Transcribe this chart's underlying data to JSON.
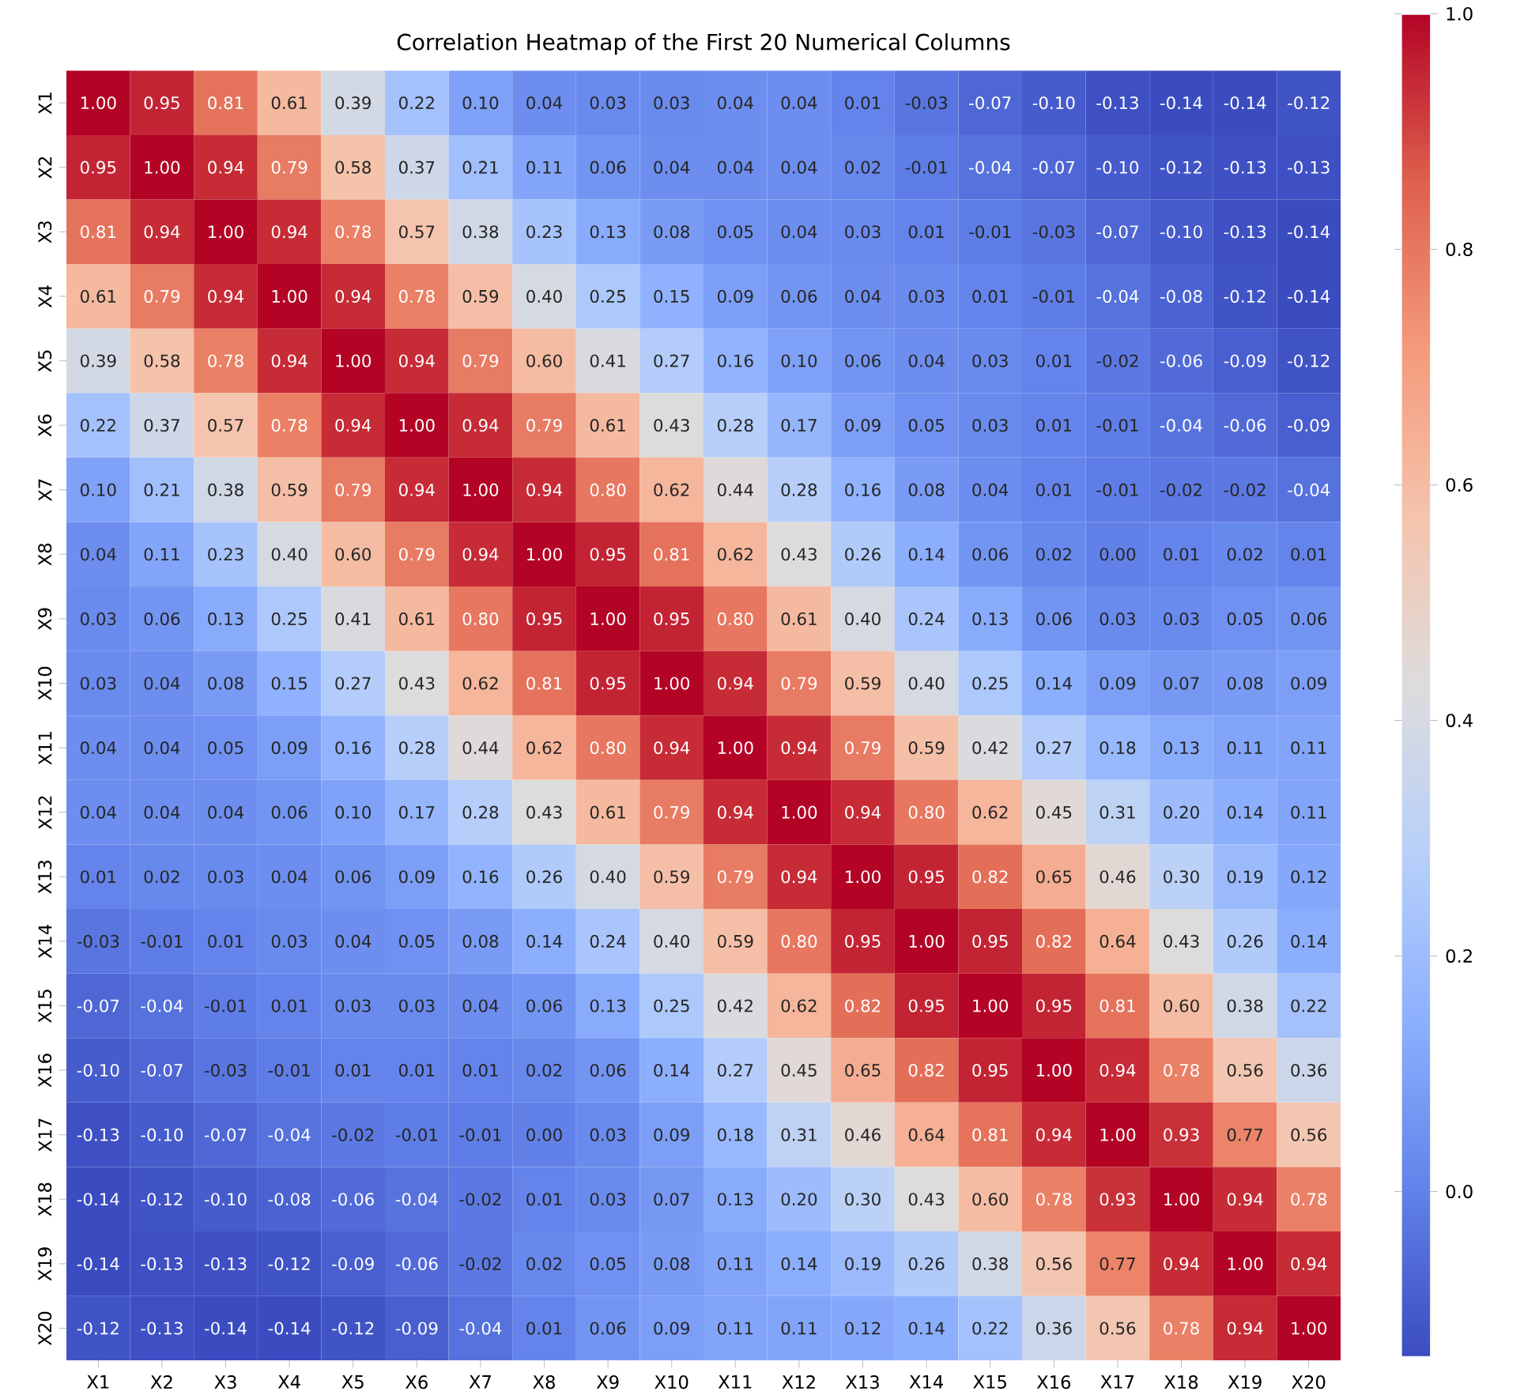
{
  "chart_data": {
    "type": "heatmap",
    "title": "Correlation Heatmap of the First 20 Numerical Columns",
    "categories": [
      "X1",
      "X2",
      "X3",
      "X4",
      "X5",
      "X6",
      "X7",
      "X8",
      "X9",
      "X10",
      "X11",
      "X12",
      "X13",
      "X14",
      "X15",
      "X16",
      "X17",
      "X18",
      "X19",
      "X20"
    ],
    "y_categories": [
      "X1",
      "X2",
      "X3",
      "X4",
      "X5",
      "X6",
      "X7",
      "X8",
      "X9",
      "X10",
      "X11",
      "X12",
      "X13",
      "X14",
      "X15",
      "X16",
      "X17",
      "X18",
      "X19",
      "X20"
    ],
    "cells": [
      [
        1.0,
        0.95,
        0.81,
        0.61,
        0.39,
        0.22,
        0.1,
        0.04,
        0.03,
        0.03,
        0.04,
        0.04,
        0.01,
        -0.03,
        -0.07,
        -0.1,
        -0.13,
        -0.14,
        -0.14,
        -0.12
      ],
      [
        0.95,
        1.0,
        0.94,
        0.79,
        0.58,
        0.37,
        0.21,
        0.11,
        0.06,
        0.04,
        0.04,
        0.04,
        0.02,
        -0.01,
        -0.04,
        -0.07,
        -0.1,
        -0.12,
        -0.13,
        -0.13
      ],
      [
        0.81,
        0.94,
        1.0,
        0.94,
        0.78,
        0.57,
        0.38,
        0.23,
        0.13,
        0.08,
        0.05,
        0.04,
        0.03,
        0.01,
        -0.01,
        -0.03,
        -0.07,
        -0.1,
        -0.13,
        -0.14
      ],
      [
        0.61,
        0.79,
        0.94,
        1.0,
        0.94,
        0.78,
        0.59,
        0.4,
        0.25,
        0.15,
        0.09,
        0.06,
        0.04,
        0.03,
        0.01,
        -0.01,
        -0.04,
        -0.08,
        -0.12,
        -0.14
      ],
      [
        0.39,
        0.58,
        0.78,
        0.94,
        1.0,
        0.94,
        0.79,
        0.6,
        0.41,
        0.27,
        0.16,
        0.1,
        0.06,
        0.04,
        0.03,
        0.01,
        -0.02,
        -0.06,
        -0.09,
        -0.12
      ],
      [
        0.22,
        0.37,
        0.57,
        0.78,
        0.94,
        1.0,
        0.94,
        0.79,
        0.61,
        0.43,
        0.28,
        0.17,
        0.09,
        0.05,
        0.03,
        0.01,
        -0.01,
        -0.04,
        -0.06,
        -0.09
      ],
      [
        0.1,
        0.21,
        0.38,
        0.59,
        0.79,
        0.94,
        1.0,
        0.94,
        0.8,
        0.62,
        0.44,
        0.28,
        0.16,
        0.08,
        0.04,
        0.01,
        -0.01,
        -0.02,
        -0.02,
        -0.04
      ],
      [
        0.04,
        0.11,
        0.23,
        0.4,
        0.6,
        0.79,
        0.94,
        1.0,
        0.95,
        0.81,
        0.62,
        0.43,
        0.26,
        0.14,
        0.06,
        0.02,
        0.0,
        0.01,
        0.02,
        0.01
      ],
      [
        0.03,
        0.06,
        0.13,
        0.25,
        0.41,
        0.61,
        0.8,
        0.95,
        1.0,
        0.95,
        0.8,
        0.61,
        0.4,
        0.24,
        0.13,
        0.06,
        0.03,
        0.03,
        0.05,
        0.06
      ],
      [
        0.03,
        0.04,
        0.08,
        0.15,
        0.27,
        0.43,
        0.62,
        0.81,
        0.95,
        1.0,
        0.94,
        0.79,
        0.59,
        0.4,
        0.25,
        0.14,
        0.09,
        0.07,
        0.08,
        0.09
      ],
      [
        0.04,
        0.04,
        0.05,
        0.09,
        0.16,
        0.28,
        0.44,
        0.62,
        0.8,
        0.94,
        1.0,
        0.94,
        0.79,
        0.59,
        0.42,
        0.27,
        0.18,
        0.13,
        0.11,
        0.11
      ],
      [
        0.04,
        0.04,
        0.04,
        0.06,
        0.1,
        0.17,
        0.28,
        0.43,
        0.61,
        0.79,
        0.94,
        1.0,
        0.94,
        0.8,
        0.62,
        0.45,
        0.31,
        0.2,
        0.14,
        0.11
      ],
      [
        0.01,
        0.02,
        0.03,
        0.04,
        0.06,
        0.09,
        0.16,
        0.26,
        0.4,
        0.59,
        0.79,
        0.94,
        1.0,
        0.95,
        0.82,
        0.65,
        0.46,
        0.3,
        0.19,
        0.12
      ],
      [
        -0.03,
        -0.01,
        0.01,
        0.03,
        0.04,
        0.05,
        0.08,
        0.14,
        0.24,
        0.4,
        0.59,
        0.8,
        0.95,
        1.0,
        0.95,
        0.82,
        0.64,
        0.43,
        0.26,
        0.14
      ],
      [
        -0.07,
        -0.04,
        -0.01,
        0.01,
        0.03,
        0.03,
        0.04,
        0.06,
        0.13,
        0.25,
        0.42,
        0.62,
        0.82,
        0.95,
        1.0,
        0.95,
        0.81,
        0.6,
        0.38,
        0.22
      ],
      [
        -0.1,
        -0.07,
        -0.03,
        -0.01,
        0.01,
        0.01,
        0.01,
        0.02,
        0.06,
        0.14,
        0.27,
        0.45,
        0.65,
        0.82,
        0.95,
        1.0,
        0.94,
        0.78,
        0.56,
        0.36
      ],
      [
        -0.13,
        -0.1,
        -0.07,
        -0.04,
        -0.02,
        -0.01,
        -0.01,
        0.0,
        0.03,
        0.09,
        0.18,
        0.31,
        0.46,
        0.64,
        0.81,
        0.94,
        1.0,
        0.93,
        0.77,
        0.56
      ],
      [
        -0.14,
        -0.12,
        -0.1,
        -0.08,
        -0.06,
        -0.04,
        -0.02,
        0.01,
        0.03,
        0.07,
        0.13,
        0.2,
        0.3,
        0.43,
        0.6,
        0.78,
        0.93,
        1.0,
        0.94,
        0.78
      ],
      [
        -0.14,
        -0.13,
        -0.13,
        -0.12,
        -0.09,
        -0.06,
        -0.02,
        0.02,
        0.05,
        0.08,
        0.11,
        0.14,
        0.19,
        0.26,
        0.38,
        0.56,
        0.77,
        0.94,
        1.0,
        0.94
      ],
      [
        -0.12,
        -0.13,
        -0.14,
        -0.14,
        -0.12,
        -0.09,
        -0.04,
        0.01,
        0.06,
        0.09,
        0.11,
        0.11,
        0.12,
        0.14,
        0.22,
        0.36,
        0.56,
        0.78,
        0.94,
        1.0
      ]
    ],
    "cell_labels": [
      [
        "1.00",
        "0.95",
        "0.81",
        "0.61",
        "0.39",
        "0.22",
        "0.10",
        "0.04",
        "0.03",
        "0.03",
        "0.04",
        "0.04",
        "0.01",
        "-0.03",
        "-0.07",
        "-0.10",
        "-0.13",
        "-0.14",
        "-0.14",
        "-0.12"
      ],
      [
        "0.95",
        "1.00",
        "0.94",
        "0.79",
        "0.58",
        "0.37",
        "0.21",
        "0.11",
        "0.06",
        "0.04",
        "0.04",
        "0.04",
        "0.02",
        "-0.01",
        "-0.04",
        "-0.07",
        "-0.10",
        "-0.12",
        "-0.13",
        "-0.13"
      ],
      [
        "0.81",
        "0.94",
        "1.00",
        "0.94",
        "0.78",
        "0.57",
        "0.38",
        "0.23",
        "0.13",
        "0.08",
        "0.05",
        "0.04",
        "0.03",
        "0.01",
        "-0.01",
        "-0.03",
        "-0.07",
        "-0.10",
        "-0.13",
        "-0.14"
      ],
      [
        "0.61",
        "0.79",
        "0.94",
        "1.00",
        "0.94",
        "0.78",
        "0.59",
        "0.40",
        "0.25",
        "0.15",
        "0.09",
        "0.06",
        "0.04",
        "0.03",
        "0.01",
        "-0.01",
        "-0.04",
        "-0.08",
        "-0.12",
        "-0.14"
      ],
      [
        "0.39",
        "0.58",
        "0.78",
        "0.94",
        "1.00",
        "0.94",
        "0.79",
        "0.60",
        "0.41",
        "0.27",
        "0.16",
        "0.10",
        "0.06",
        "0.04",
        "0.03",
        "0.01",
        "-0.02",
        "-0.06",
        "-0.09",
        "-0.12"
      ],
      [
        "0.22",
        "0.37",
        "0.57",
        "0.78",
        "0.94",
        "1.00",
        "0.94",
        "0.79",
        "0.61",
        "0.43",
        "0.28",
        "0.17",
        "0.09",
        "0.05",
        "0.03",
        "0.01",
        "-0.01",
        "-0.04",
        "-0.06",
        "-0.09"
      ],
      [
        "0.10",
        "0.21",
        "0.38",
        "0.59",
        "0.79",
        "0.94",
        "1.00",
        "0.94",
        "0.80",
        "0.62",
        "0.44",
        "0.28",
        "0.16",
        "0.08",
        "0.04",
        "0.01",
        "-0.01",
        "-0.02",
        "-0.02",
        "-0.04"
      ],
      [
        "0.04",
        "0.11",
        "0.23",
        "0.40",
        "0.60",
        "0.79",
        "0.94",
        "1.00",
        "0.95",
        "0.81",
        "0.62",
        "0.43",
        "0.26",
        "0.14",
        "0.06",
        "0.02",
        "0.00",
        "0.01",
        "0.02",
        "0.01"
      ],
      [
        "0.03",
        "0.06",
        "0.13",
        "0.25",
        "0.41",
        "0.61",
        "0.80",
        "0.95",
        "1.00",
        "0.95",
        "0.80",
        "0.61",
        "0.40",
        "0.24",
        "0.13",
        "0.06",
        "0.03",
        "0.03",
        "0.05",
        "0.06"
      ],
      [
        "0.03",
        "0.04",
        "0.08",
        "0.15",
        "0.27",
        "0.43",
        "0.62",
        "0.81",
        "0.95",
        "1.00",
        "0.94",
        "0.79",
        "0.59",
        "0.40",
        "0.25",
        "0.14",
        "0.09",
        "0.07",
        "0.08",
        "0.09"
      ],
      [
        "0.04",
        "0.04",
        "0.05",
        "0.09",
        "0.16",
        "0.28",
        "0.44",
        "0.62",
        "0.80",
        "0.94",
        "1.00",
        "0.94",
        "0.79",
        "0.59",
        "0.42",
        "0.27",
        "0.18",
        "0.13",
        "0.11",
        "0.11"
      ],
      [
        "0.04",
        "0.04",
        "0.04",
        "0.06",
        "0.10",
        "0.17",
        "0.28",
        "0.43",
        "0.61",
        "0.79",
        "0.94",
        "1.00",
        "0.94",
        "0.80",
        "0.62",
        "0.45",
        "0.31",
        "0.20",
        "0.14",
        "0.11"
      ],
      [
        "0.01",
        "0.02",
        "0.03",
        "0.04",
        "0.06",
        "0.09",
        "0.16",
        "0.26",
        "0.40",
        "0.59",
        "0.79",
        "0.94",
        "1.00",
        "0.95",
        "0.82",
        "0.65",
        "0.46",
        "0.30",
        "0.19",
        "0.12"
      ],
      [
        "-0.03",
        "-0.01",
        "0.01",
        "0.03",
        "0.04",
        "0.05",
        "0.08",
        "0.14",
        "0.24",
        "0.40",
        "0.59",
        "0.80",
        "0.95",
        "1.00",
        "0.95",
        "0.82",
        "0.64",
        "0.43",
        "0.26",
        "0.14"
      ],
      [
        "-0.07",
        "-0.04",
        "-0.01",
        "0.01",
        "0.03",
        "0.03",
        "0.04",
        "0.06",
        "0.13",
        "0.25",
        "0.42",
        "0.62",
        "0.82",
        "0.95",
        "1.00",
        "0.95",
        "0.81",
        "0.60",
        "0.38",
        "0.22"
      ],
      [
        "-0.10",
        "-0.07",
        "-0.03",
        "-0.01",
        "0.01",
        "0.01",
        "0.01",
        "0.02",
        "0.06",
        "0.14",
        "0.27",
        "0.45",
        "0.65",
        "0.82",
        "0.95",
        "1.00",
        "0.94",
        "0.78",
        "0.56",
        "0.36"
      ],
      [
        "-0.13",
        "-0.10",
        "-0.07",
        "-0.04",
        "-0.02",
        "-0.01",
        "-0.01",
        "0.00",
        "0.03",
        "0.09",
        "0.18",
        "0.31",
        "0.46",
        "0.64",
        "0.81",
        "0.94",
        "1.00",
        "0.93",
        "0.77",
        "0.56"
      ],
      [
        "-0.14",
        "-0.12",
        "-0.10",
        "-0.08",
        "-0.06",
        "-0.04",
        "-0.02",
        "0.01",
        "0.03",
        "0.07",
        "0.13",
        "0.20",
        "0.30",
        "0.43",
        "0.60",
        "0.78",
        "0.93",
        "1.00",
        "0.94",
        "0.78"
      ],
      [
        "-0.14",
        "-0.13",
        "-0.13",
        "-0.12",
        "-0.09",
        "-0.06",
        "-0.02",
        "0.02",
        "0.05",
        "0.08",
        "0.11",
        "0.14",
        "0.19",
        "0.26",
        "0.38",
        "0.56",
        "0.77",
        "0.94",
        "1.00",
        "0.94"
      ],
      [
        "-0.12",
        "-0.13",
        "-0.14",
        "-0.14",
        "-0.12",
        "-0.09",
        "-0.04",
        "0.01",
        "0.06",
        "0.09",
        "0.11",
        "0.11",
        "0.12",
        "0.14",
        "0.22",
        "0.36",
        "0.56",
        "0.78",
        "0.94",
        "1.00"
      ]
    ],
    "clim": [
      -0.14,
      1.0
    ],
    "cticks": [
      {
        "value": 0,
        "label": "0.0"
      },
      {
        "value": 0.2,
        "label": "0.2"
      },
      {
        "value": 0.4,
        "label": "0.4"
      },
      {
        "value": 0.6,
        "label": "0.6"
      },
      {
        "value": 0.8,
        "label": "0.8"
      },
      {
        "value": 1.0,
        "label": "1.0"
      }
    ]
  }
}
